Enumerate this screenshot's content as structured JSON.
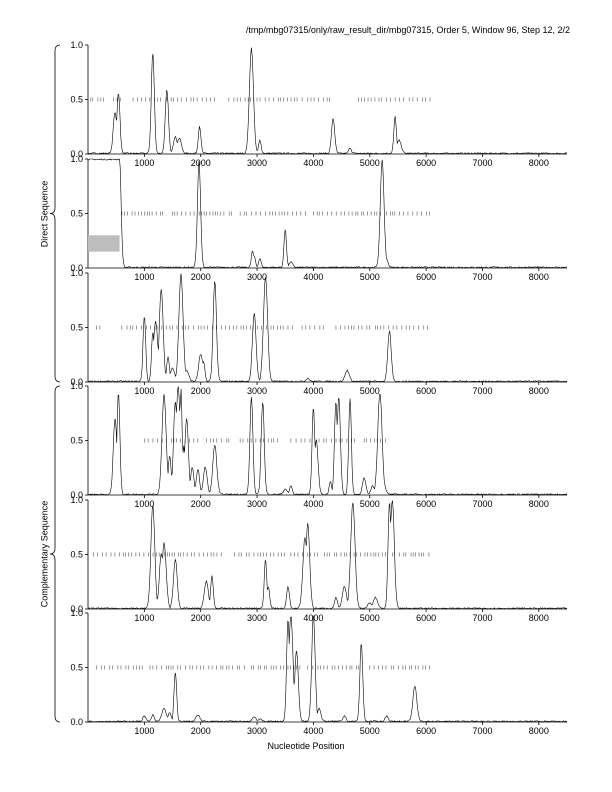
{
  "page": {
    "title": "/tmp/mbg07315/only/raw_result_dir/mbg07315, Order 5, Window 96, Step 12, 2/2"
  },
  "group_labels": {
    "direct": "Direct Sequence",
    "complementary": "Complementary Sequence"
  },
  "chart_data": {
    "type": "line",
    "xlabel": "Nucleotide Position",
    "xlim": [
      0,
      8500
    ],
    "ylim": [
      0,
      1
    ],
    "x_ticks": [
      1000,
      2000,
      3000,
      4000,
      5000,
      6000,
      7000,
      8000
    ],
    "y_ticks": [
      0.0,
      0.5,
      1.0
    ],
    "y_tick_labels": [
      "0.0",
      "0.5",
      "1.0"
    ],
    "panels": [
      {
        "group": "direct",
        "frame": 1,
        "peaks": [
          [
            480,
            0.38
          ],
          [
            540,
            0.55
          ],
          [
            1150,
            0.92
          ],
          [
            1400,
            0.58
          ],
          [
            1550,
            0.15
          ],
          [
            1620,
            0.14
          ],
          [
            1980,
            0.25
          ],
          [
            2900,
            0.97
          ],
          [
            3050,
            0.12
          ],
          [
            4350,
            0.32
          ],
          [
            4650,
            0.05
          ],
          [
            5450,
            0.34
          ],
          [
            5520,
            0.12
          ]
        ],
        "orf_ticks": [
          [
            50,
            350
          ],
          [
            450,
            650
          ],
          [
            800,
            1350
          ],
          [
            1400,
            2300
          ],
          [
            2500,
            3800
          ],
          [
            3900,
            4300
          ],
          [
            4800,
            5600
          ],
          [
            5700,
            6100
          ]
        ],
        "highlight": null
      },
      {
        "group": "direct",
        "frame": 2,
        "peaks": [
          [
            560,
            0.99
          ],
          [
            1970,
            0.98
          ],
          [
            2920,
            0.15
          ],
          [
            2950,
            0.1
          ],
          [
            3050,
            0.08
          ],
          [
            3500,
            0.35
          ],
          [
            3600,
            0.05
          ],
          [
            5220,
            0.99
          ],
          [
            5300,
            0.08
          ]
        ],
        "orf_ticks": [
          [
            600,
            1400
          ],
          [
            1500,
            2600
          ],
          [
            2700,
            3900
          ],
          [
            4000,
            5200
          ],
          [
            5300,
            6100
          ]
        ],
        "highlight": {
          "x_start": 0,
          "x_end": 560,
          "y_low": 0.15,
          "y_high": 0.3
        },
        "plateau": {
          "x_start": 0,
          "x_end": 560,
          "y": 0.99
        }
      },
      {
        "group": "direct",
        "frame": 3,
        "peaks": [
          [
            1000,
            0.6
          ],
          [
            1150,
            0.45
          ],
          [
            1200,
            0.55
          ],
          [
            1300,
            0.85
          ],
          [
            1420,
            0.22
          ],
          [
            1500,
            0.12
          ],
          [
            1650,
            0.99
          ],
          [
            1750,
            0.1
          ],
          [
            2000,
            0.25
          ],
          [
            2050,
            0.18
          ],
          [
            2250,
            0.92
          ],
          [
            2950,
            0.62
          ],
          [
            3150,
            0.96
          ],
          [
            3900,
            0.03
          ],
          [
            4600,
            0.1
          ],
          [
            5350,
            0.46
          ]
        ],
        "orf_ticks": [
          [
            150,
            250
          ],
          [
            600,
            3700
          ],
          [
            3800,
            4200
          ],
          [
            4400,
            5000
          ],
          [
            5100,
            6100
          ]
        ],
        "highlight": null
      },
      {
        "group": "complementary",
        "frame": 1,
        "peaks": [
          [
            480,
            0.7
          ],
          [
            540,
            0.93
          ],
          [
            1350,
            0.92
          ],
          [
            1450,
            0.35
          ],
          [
            1550,
            0.85
          ],
          [
            1600,
            0.99
          ],
          [
            1650,
            0.97
          ],
          [
            1700,
            0.45
          ],
          [
            1750,
            0.7
          ],
          [
            1850,
            0.25
          ],
          [
            1950,
            0.23
          ],
          [
            2080,
            0.25
          ],
          [
            2250,
            0.45
          ],
          [
            2900,
            0.9
          ],
          [
            3100,
            0.85
          ],
          [
            3500,
            0.05
          ],
          [
            3600,
            0.08
          ],
          [
            4000,
            0.8
          ],
          [
            4050,
            0.5
          ],
          [
            4300,
            0.12
          ],
          [
            4400,
            0.85
          ],
          [
            4450,
            0.9
          ],
          [
            4650,
            0.88
          ],
          [
            4900,
            0.15
          ],
          [
            5050,
            0.08
          ],
          [
            5180,
            0.93
          ],
          [
            5250,
            0.1
          ]
        ],
        "orf_ticks": [
          [
            1000,
            2000
          ],
          [
            2100,
            2500
          ],
          [
            2700,
            3400
          ],
          [
            3600,
            4000
          ],
          [
            4100,
            4800
          ],
          [
            4900,
            5300
          ]
        ],
        "highlight": null
      },
      {
        "group": "complementary",
        "frame": 2,
        "peaks": [
          [
            1150,
            0.95
          ],
          [
            1300,
            0.5
          ],
          [
            1350,
            0.6
          ],
          [
            1550,
            0.45
          ],
          [
            2100,
            0.25
          ],
          [
            2200,
            0.3
          ],
          [
            3150,
            0.45
          ],
          [
            3200,
            0.2
          ],
          [
            3550,
            0.2
          ],
          [
            3850,
            0.65
          ],
          [
            3900,
            0.78
          ],
          [
            4400,
            0.1
          ],
          [
            4550,
            0.2
          ],
          [
            4700,
            0.97
          ],
          [
            5000,
            0.05
          ],
          [
            5100,
            0.1
          ],
          [
            5350,
            0.98
          ],
          [
            5400,
            0.99
          ]
        ],
        "orf_ticks": [
          [
            100,
            2400
          ],
          [
            2600,
            3500
          ],
          [
            3600,
            4100
          ],
          [
            4200,
            5300
          ],
          [
            5400,
            6100
          ]
        ],
        "highlight": null
      },
      {
        "group": "complementary",
        "frame": 3,
        "peaks": [
          [
            1000,
            0.05
          ],
          [
            1150,
            0.06
          ],
          [
            1350,
            0.12
          ],
          [
            1450,
            0.08
          ],
          [
            1550,
            0.45
          ],
          [
            1950,
            0.06
          ],
          [
            2950,
            0.04
          ],
          [
            3050,
            0.02
          ],
          [
            3550,
            0.94
          ],
          [
            3600,
            0.97
          ],
          [
            3700,
            0.65
          ],
          [
            4000,
            0.98
          ],
          [
            4100,
            0.12
          ],
          [
            4550,
            0.05
          ],
          [
            4850,
            0.72
          ],
          [
            5300,
            0.05
          ],
          [
            5800,
            0.32
          ]
        ],
        "orf_ticks": [
          [
            150,
            1000
          ],
          [
            1100,
            2800
          ],
          [
            2900,
            3800
          ],
          [
            3900,
            4800
          ],
          [
            5000,
            6100
          ]
        ],
        "highlight": null
      }
    ]
  }
}
